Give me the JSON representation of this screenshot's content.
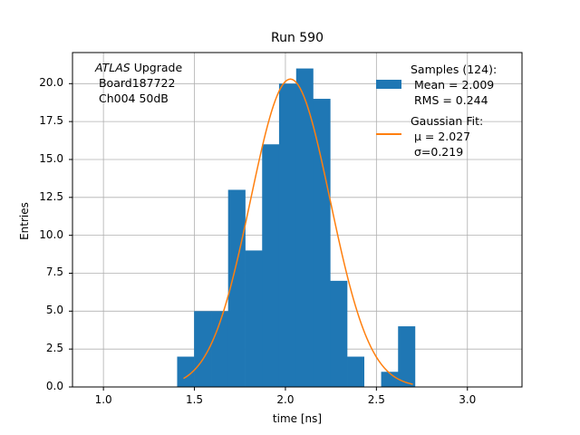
{
  "chart_data": {
    "type": "bar",
    "title": "Run 590",
    "xlabel": "time [ns]",
    "ylabel": "Entries",
    "xlim": [
      0.83,
      3.3
    ],
    "ylim": [
      0,
      22.05
    ],
    "grid": true,
    "x_ticks": [
      "1.0",
      "1.5",
      "2.0",
      "2.5",
      "3.0"
    ],
    "x_tick_values": [
      1.0,
      1.5,
      2.0,
      2.5,
      3.0
    ],
    "y_ticks": [
      "0.0",
      "2.5",
      "5.0",
      "7.5",
      "10.0",
      "12.5",
      "15.0",
      "17.5",
      "20.0"
    ],
    "y_tick_values": [
      0,
      2.5,
      5,
      7.5,
      10,
      12.5,
      15,
      17.5,
      20
    ],
    "bin_edges": [
      1.405,
      1.498,
      1.592,
      1.685,
      1.779,
      1.872,
      1.965,
      2.059,
      2.152,
      2.246,
      2.339,
      2.432,
      2.526,
      2.619,
      2.712
    ],
    "counts": [
      2,
      5,
      5,
      13,
      9,
      16,
      20,
      21,
      19,
      7,
      2,
      0,
      1,
      4
    ],
    "bar_color": "#1f77b4",
    "fit": {
      "name": "Gaussian Fit",
      "mu": 2.027,
      "sigma": 0.219,
      "amplitude": 20.3,
      "x_range": [
        1.44,
        2.7
      ],
      "color": "#ff7f0e"
    },
    "annotation": {
      "italic": "ATLAS",
      "line1_rest": " Upgrade",
      "line2": " Board187722",
      "line3": " Ch004 50dB"
    },
    "legend": {
      "position": "top-right",
      "samples_line1": "Samples (124):",
      "samples_line2": " Mean = 2.009",
      "samples_line3": " RMS = 0.244",
      "fit_line1": "Gaussian Fit:",
      "fit_line2": " μ = 2.027",
      "fit_line3": " σ=0.219"
    }
  }
}
